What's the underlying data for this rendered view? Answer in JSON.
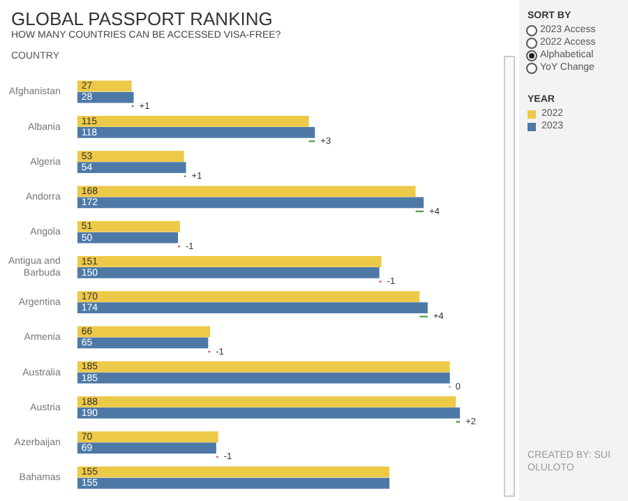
{
  "chart_data": [
    {
      "type": "bar",
      "orientation": "horizontal",
      "title": "GLOBAL PASSPORT RANKING",
      "subtitle": "HOW MANY COUNTRIES CAN BE ACCESSED VISA-FREE?",
      "ylabel": "COUNTRY",
      "legend_title": "YEAR",
      "legend": "right",
      "data_labels": true,
      "grid": false,
      "categories": [
        "Afghanistan",
        "Albania",
        "Algeria",
        "Andorra",
        "Angola",
        "Antigua and Barbuda",
        "Argentina",
        "Armenia",
        "Australia",
        "Austria",
        "Azerbaijan",
        "Bahamas"
      ],
      "series": [
        {
          "name": "2022",
          "color": "#edc948",
          "values": [
            27,
            115,
            53,
            168,
            51,
            151,
            170,
            66,
            185,
            188,
            70,
            155
          ]
        },
        {
          "name": "2023",
          "color": "#4e79a7",
          "values": [
            28,
            118,
            54,
            172,
            50,
            150,
            174,
            65,
            185,
            190,
            69,
            155
          ]
        }
      ],
      "annotations": [
        {
          "text": "+1",
          "x": 28,
          "y": "Afghanistan"
        },
        {
          "text": "+3",
          "x": 118,
          "y": "Albania"
        },
        {
          "text": "+1",
          "x": 54,
          "y": "Algeria"
        },
        {
          "text": "+4",
          "x": 172,
          "y": "Andorra"
        },
        {
          "text": "-1",
          "x": 51,
          "y": "Angola"
        },
        {
          "text": "-1",
          "x": 151,
          "y": "Antigua and Barbuda"
        },
        {
          "text": "+4",
          "x": 174,
          "y": "Argentina"
        },
        {
          "text": "-1",
          "x": 66,
          "y": "Armenia"
        },
        {
          "text": "0",
          "x": 185,
          "y": "Australia"
        },
        {
          "text": "+2",
          "x": 190,
          "y": "Austria"
        },
        {
          "text": "-1",
          "x": 70,
          "y": "Azerbaijan"
        }
      ]
    },
    {
      "type": "other",
      "title": "SORT BY",
      "categories": [
        "2023 Access",
        "2022 Access",
        "Alphabetical",
        "YoY Change"
      ],
      "annotations": [
        "CREATED BY: SUI OLULOTO"
      ]
    }
  ]
}
